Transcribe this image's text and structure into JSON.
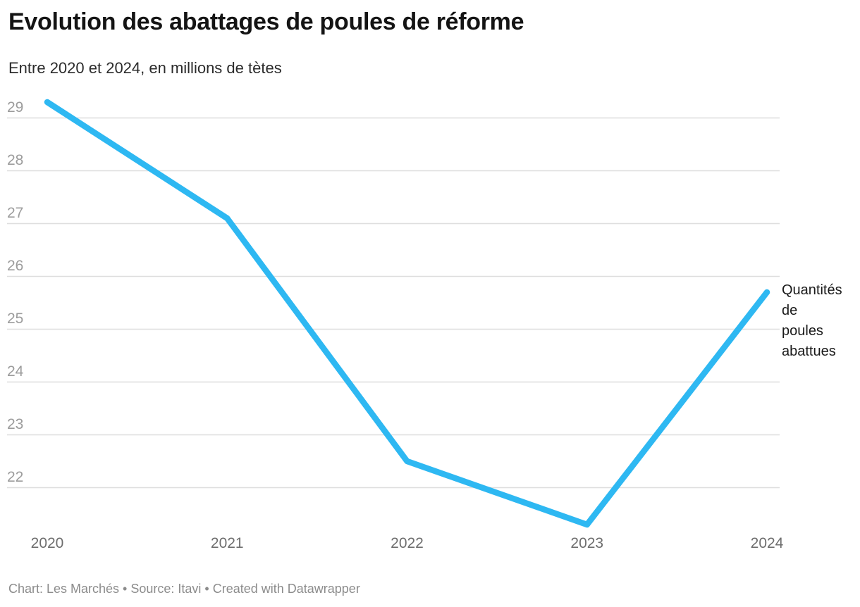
{
  "footer": {
    "text": "Chart: Les Marchés • Source: Itavi • Created with Datawrapper"
  },
  "annotation": {
    "label": "Quantités de poules abattues",
    "label_display": "Quantités\nde\npoules\nabattues"
  },
  "colors": {
    "line": "#2eb8f2",
    "grid": "#dedede",
    "y_tick_label": "#9c9c9c",
    "x_tick_label": "#6e6e6e",
    "title": "#141414",
    "subtitle": "#2b2b2b",
    "annotation_text": "#1a1a1a",
    "footer_text": "#8c8c8c"
  },
  "chart_data": {
    "type": "line",
    "title": "Evolution des abattages de poules de réforme",
    "subtitle": "Entre 2020 et 2024, en millions de tètes",
    "x": [
      2020,
      2021,
      2022,
      2023,
      2024
    ],
    "series": [
      {
        "name": "Quantités de poules abattues",
        "values": [
          29.3,
          27.1,
          22.5,
          21.3,
          25.7
        ]
      }
    ],
    "y_ticks": [
      29,
      28,
      27,
      26,
      25,
      24,
      23,
      22
    ],
    "ylim": [
      21.0,
      29.5
    ],
    "xlabel": "",
    "ylabel": "",
    "grid": "horizontal",
    "legend_position": "direct-label-right-of-line-end",
    "line_style": "thick-round-cap"
  }
}
